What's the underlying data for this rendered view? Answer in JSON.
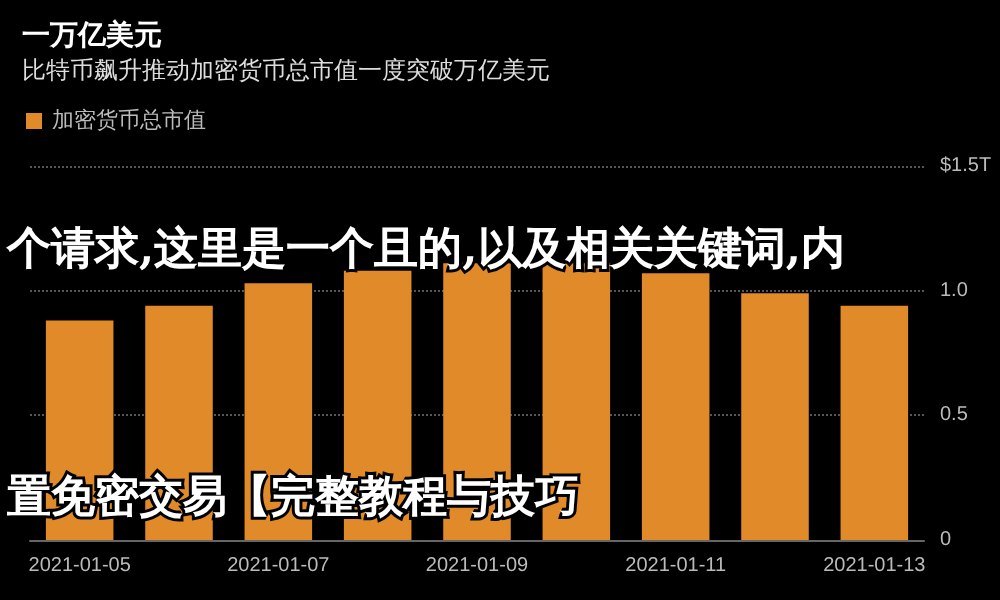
{
  "chart_data": {
    "type": "bar",
    "title": "一万亿美元",
    "subtitle": "比特币飙升推动加密货币总市值一度突破万亿美元",
    "categories": [
      "2021-01-05",
      null,
      "2021-01-07",
      null,
      "2021-01-09",
      null,
      "2021-01-11",
      null,
      "2021-01-13"
    ],
    "series": [
      {
        "name": "加密货币总市值",
        "color": "#e08a2a",
        "values": [
          0.88,
          0.94,
          1.03,
          1.08,
          1.11,
          1.11,
          1.07,
          0.99,
          0.94
        ]
      }
    ],
    "ylim": [
      0,
      1.5
    ],
    "yticks": [
      0,
      0.5,
      {
        "value": 1,
        "label": "1.0"
      },
      {
        "value": 1.5,
        "label": "$1.5T"
      }
    ],
    "grid": "y",
    "legend": "top left",
    "annotations": [
      "个请求,这里是一个且的,以及相关关键词,内",
      "置免密交易【完整教程与技巧"
    ]
  }
}
